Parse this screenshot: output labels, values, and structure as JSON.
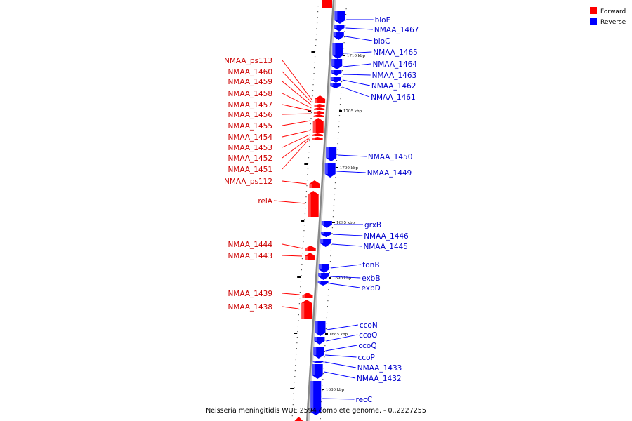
{
  "colors": {
    "forward": "#ff0000",
    "reverse": "#0000ff",
    "forward_text": "#cc0000",
    "reverse_text": "#0000cc",
    "axis": "#888888"
  },
  "legend": [
    {
      "label": "Forward",
      "color": "#ff0000"
    },
    {
      "label": "Reverse",
      "color": "#0000ff"
    }
  ],
  "footer": "Neisseria meningitidis WUE 2594 complete genome. - 0..2227255",
  "scale_labels": [
    "1710 kbp",
    "1705 kbp",
    "1700 kbp",
    "1695 kbp",
    "1690 kbp",
    "1685 kbp",
    "1680 kbp"
  ],
  "forward_genes": [
    "NMAA_ps113",
    "NMAA_1460",
    "NMAA_1459",
    "NMAA_1458",
    "NMAA_1457",
    "NMAA_1456",
    "NMAA_1455",
    "NMAA_1454",
    "NMAA_1453",
    "NMAA_1452",
    "NMAA_1451",
    "NMAA_ps112",
    "relA",
    "NMAA_1444",
    "NMAA_1443",
    "NMAA_1439",
    "NMAA_1438"
  ],
  "reverse_genes": [
    "bioF",
    "NMAA_1467",
    "bioC",
    "NMAA_1465",
    "NMAA_1464",
    "NMAA_1463",
    "NMAA_1462",
    "NMAA_1461",
    "NMAA_1450",
    "NMAA_1449",
    "grxB",
    "NMAA_1446",
    "NMAA_1445",
    "tonB",
    "exbB",
    "exbD",
    "ccoN",
    "ccoO",
    "ccoQ",
    "ccoP",
    "NMAA_1433",
    "NMAA_1432",
    "recC"
  ]
}
